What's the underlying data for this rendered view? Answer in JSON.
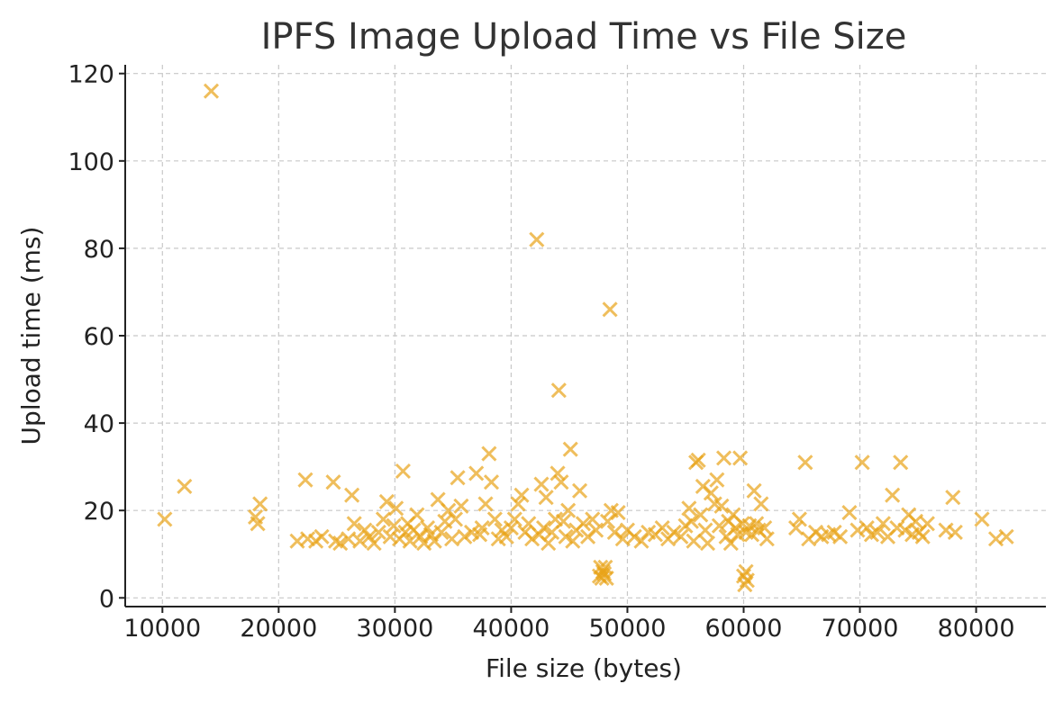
{
  "chart_data": {
    "type": "scatter",
    "title": "IPFS Image Upload Time vs File Size",
    "xlabel": "File size (bytes)",
    "ylabel": "Upload time (ms)",
    "xlim": [
      6800,
      86000
    ],
    "ylim": [
      -2,
      122
    ],
    "xticks": [
      10000,
      20000,
      30000,
      40000,
      50000,
      60000,
      70000,
      80000
    ],
    "yticks": [
      0,
      20,
      40,
      60,
      80,
      100,
      120
    ],
    "grid": true,
    "marker": "x",
    "color": "#E8A317",
    "points": [
      [
        10200,
        18
      ],
      [
        11900,
        25.5
      ],
      [
        14200,
        116
      ],
      [
        18200,
        17
      ],
      [
        18400,
        21.5
      ],
      [
        18000,
        18.5
      ],
      [
        21600,
        13
      ],
      [
        22300,
        27
      ],
      [
        22500,
        13.5
      ],
      [
        23200,
        13
      ],
      [
        23700,
        14
      ],
      [
        24700,
        26.5
      ],
      [
        24900,
        13
      ],
      [
        25300,
        12.5
      ],
      [
        26000,
        13.5
      ],
      [
        26300,
        23.5
      ],
      [
        26500,
        17
      ],
      [
        27000,
        13
      ],
      [
        27400,
        15.5
      ],
      [
        27800,
        14
      ],
      [
        28200,
        12.5
      ],
      [
        28600,
        15
      ],
      [
        29000,
        18
      ],
      [
        29300,
        22
      ],
      [
        29600,
        14
      ],
      [
        29900,
        16.5
      ],
      [
        30100,
        20.5
      ],
      [
        30400,
        13.5
      ],
      [
        30700,
        29
      ],
      [
        30900,
        15
      ],
      [
        31100,
        17
      ],
      [
        31300,
        13
      ],
      [
        31600,
        15.5
      ],
      [
        31900,
        19
      ],
      [
        32200,
        14
      ],
      [
        32500,
        12.5
      ],
      [
        32800,
        16
      ],
      [
        33100,
        14.5
      ],
      [
        33400,
        13
      ],
      [
        33700,
        22.5
      ],
      [
        34000,
        15
      ],
      [
        34300,
        17.5
      ],
      [
        34600,
        20
      ],
      [
        34900,
        13.5
      ],
      [
        35200,
        18
      ],
      [
        35400,
        27.5
      ],
      [
        35700,
        21
      ],
      [
        36000,
        14
      ],
      [
        36600,
        15
      ],
      [
        37000,
        28.5
      ],
      [
        37300,
        14.5
      ],
      [
        37500,
        16
      ],
      [
        37800,
        21.5
      ],
      [
        38100,
        33
      ],
      [
        38300,
        26.5
      ],
      [
        38600,
        18
      ],
      [
        38900,
        13.5
      ],
      [
        39200,
        15.5
      ],
      [
        39600,
        14
      ],
      [
        40000,
        16
      ],
      [
        40300,
        18
      ],
      [
        40600,
        21.5
      ],
      [
        40900,
        23.5
      ],
      [
        41200,
        15
      ],
      [
        41500,
        17
      ],
      [
        41800,
        13.5
      ],
      [
        42200,
        82
      ],
      [
        42400,
        14.5
      ],
      [
        42600,
        26
      ],
      [
        42800,
        16
      ],
      [
        43000,
        23
      ],
      [
        43200,
        12.5
      ],
      [
        43500,
        15
      ],
      [
        43800,
        18
      ],
      [
        44000,
        28.5
      ],
      [
        44100,
        47.5
      ],
      [
        44300,
        26.5
      ],
      [
        44500,
        17.5
      ],
      [
        44700,
        14
      ],
      [
        44900,
        20
      ],
      [
        45100,
        34
      ],
      [
        45300,
        13
      ],
      [
        45600,
        15.5
      ],
      [
        45900,
        24.5
      ],
      [
        46200,
        17
      ],
      [
        46600,
        14
      ],
      [
        47000,
        18
      ],
      [
        47300,
        15.5
      ],
      [
        47600,
        5
      ],
      [
        47700,
        7
      ],
      [
        47800,
        4.5
      ],
      [
        47900,
        6
      ],
      [
        48000,
        5.5
      ],
      [
        48100,
        7
      ],
      [
        48200,
        4.5
      ],
      [
        48300,
        17.5
      ],
      [
        48500,
        66
      ],
      [
        48600,
        20
      ],
      [
        48900,
        15
      ],
      [
        49200,
        19.5
      ],
      [
        49600,
        13.5
      ],
      [
        50000,
        15.5
      ],
      [
        50600,
        14
      ],
      [
        51200,
        13
      ],
      [
        51800,
        15
      ],
      [
        52400,
        14.5
      ],
      [
        53000,
        16
      ],
      [
        53500,
        13.5
      ],
      [
        54000,
        15
      ],
      [
        54600,
        14
      ],
      [
        55000,
        16.5
      ],
      [
        55300,
        20.5
      ],
      [
        55500,
        17.5
      ],
      [
        55700,
        13
      ],
      [
        55900,
        31
      ],
      [
        56100,
        31.5
      ],
      [
        56300,
        19
      ],
      [
        56500,
        25.5
      ],
      [
        56700,
        15.5
      ],
      [
        56900,
        12.5
      ],
      [
        57200,
        24
      ],
      [
        57500,
        21.5
      ],
      [
        57700,
        27
      ],
      [
        57900,
        16.5
      ],
      [
        58100,
        21
      ],
      [
        58300,
        32
      ],
      [
        58500,
        14
      ],
      [
        58700,
        17.5
      ],
      [
        58900,
        12.5
      ],
      [
        59100,
        19
      ],
      [
        59300,
        16
      ],
      [
        59500,
        14.5
      ],
      [
        59700,
        32
      ],
      [
        59900,
        17
      ],
      [
        60000,
        5
      ],
      [
        60100,
        3
      ],
      [
        60200,
        6
      ],
      [
        60300,
        4
      ],
      [
        60200,
        15
      ],
      [
        60500,
        16.5
      ],
      [
        60700,
        14.5
      ],
      [
        60900,
        24.5
      ],
      [
        61100,
        17
      ],
      [
        61300,
        15.5
      ],
      [
        61500,
        21.5
      ],
      [
        61800,
        16
      ],
      [
        62000,
        13.5
      ],
      [
        64500,
        16
      ],
      [
        64800,
        18
      ],
      [
        65300,
        31
      ],
      [
        65600,
        13.5
      ],
      [
        66200,
        15
      ],
      [
        66700,
        14
      ],
      [
        67300,
        14.5
      ],
      [
        67800,
        15
      ],
      [
        68300,
        14
      ],
      [
        69100,
        19.5
      ],
      [
        69800,
        15.5
      ],
      [
        70200,
        31
      ],
      [
        70600,
        16
      ],
      [
        71000,
        14.5
      ],
      [
        71500,
        15
      ],
      [
        72000,
        17
      ],
      [
        72400,
        14
      ],
      [
        72800,
        23.5
      ],
      [
        73200,
        16
      ],
      [
        73500,
        31
      ],
      [
        73900,
        15.5
      ],
      [
        74200,
        19
      ],
      [
        74500,
        14.5
      ],
      [
        74800,
        17.5
      ],
      [
        75100,
        15
      ],
      [
        75400,
        14
      ],
      [
        75800,
        17
      ],
      [
        77400,
        15.5
      ],
      [
        78000,
        23
      ],
      [
        78200,
        15
      ],
      [
        80500,
        18
      ],
      [
        81700,
        13.5
      ],
      [
        82600,
        14
      ]
    ]
  }
}
